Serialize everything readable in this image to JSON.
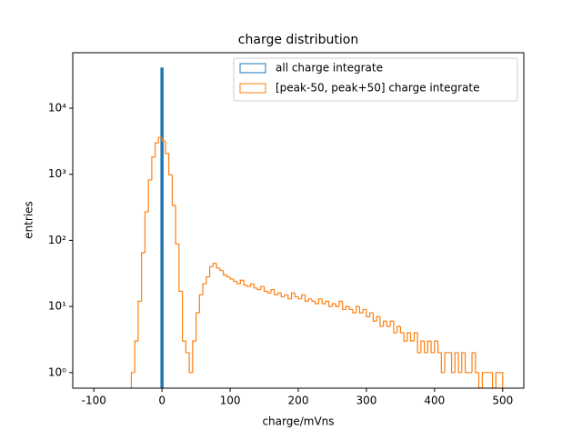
{
  "chart_data": {
    "type": "histogram",
    "title": "charge distribution",
    "xlabel": "charge/mVns",
    "ylabel": "entries",
    "xlim": [
      -131,
      531
    ],
    "ylim": [
      0.58,
      69000
    ],
    "ylog": true,
    "xticks": [
      -100,
      0,
      100,
      200,
      300,
      400,
      500
    ],
    "yticks": [
      {
        "value": 1,
        "label": "10⁰"
      },
      {
        "value": 10,
        "label": "10¹"
      },
      {
        "value": 100,
        "label": "10²"
      },
      {
        "value": 1000,
        "label": "10³"
      },
      {
        "value": 10000,
        "label": "10⁴"
      }
    ],
    "legend": "upper right",
    "series": [
      {
        "name": "all charge integrate",
        "color": "#1f77b4",
        "bins": [
          -1,
          1
        ],
        "values": [
          40000
        ]
      },
      {
        "name": "[peak-50, peak+50] charge integrate",
        "color": "#ff7f0e",
        "bins": [
          -45,
          -40,
          -35,
          -30,
          -25,
          -20,
          -15,
          -10,
          -5,
          0,
          5,
          10,
          15,
          20,
          25,
          30,
          35,
          40,
          45,
          50,
          55,
          60,
          65,
          70,
          75,
          80,
          85,
          90,
          95,
          100,
          105,
          110,
          115,
          120,
          125,
          130,
          135,
          140,
          145,
          150,
          155,
          160,
          165,
          170,
          175,
          180,
          185,
          190,
          195,
          200,
          205,
          210,
          215,
          220,
          225,
          230,
          235,
          240,
          245,
          250,
          255,
          260,
          265,
          270,
          275,
          280,
          285,
          290,
          295,
          300,
          305,
          310,
          315,
          320,
          325,
          330,
          335,
          340,
          345,
          350,
          355,
          360,
          365,
          370,
          375,
          380,
          385,
          390,
          395,
          400,
          405,
          410,
          415,
          420,
          425,
          430,
          435,
          440,
          445,
          450,
          455,
          460,
          465,
          470,
          475,
          480,
          485,
          490,
          495,
          500
        ],
        "values": [
          1,
          3,
          12,
          65,
          270,
          820,
          1820,
          2990,
          3600,
          3180,
          2060,
          980,
          340,
          88,
          17,
          3,
          2,
          1,
          3,
          8,
          15,
          22,
          28,
          40,
          45,
          38,
          35,
          30,
          28,
          26,
          24,
          22,
          25,
          21,
          20,
          22,
          19,
          18,
          20,
          17,
          16,
          18,
          15,
          16,
          14,
          15,
          13,
          16,
          14,
          13,
          15,
          12,
          13,
          12,
          11,
          13,
          11,
          12,
          10,
          11,
          10,
          12,
          9,
          10,
          9,
          8,
          10,
          8,
          9,
          7,
          8,
          6,
          7,
          5,
          6,
          5,
          6,
          4,
          5,
          4,
          3,
          4,
          3,
          4,
          2,
          3,
          2,
          3,
          2,
          3,
          2,
          1,
          2,
          2,
          1,
          2,
          1,
          2,
          1,
          1,
          2,
          1,
          0,
          1,
          1,
          1,
          0,
          1,
          1
        ]
      }
    ]
  }
}
